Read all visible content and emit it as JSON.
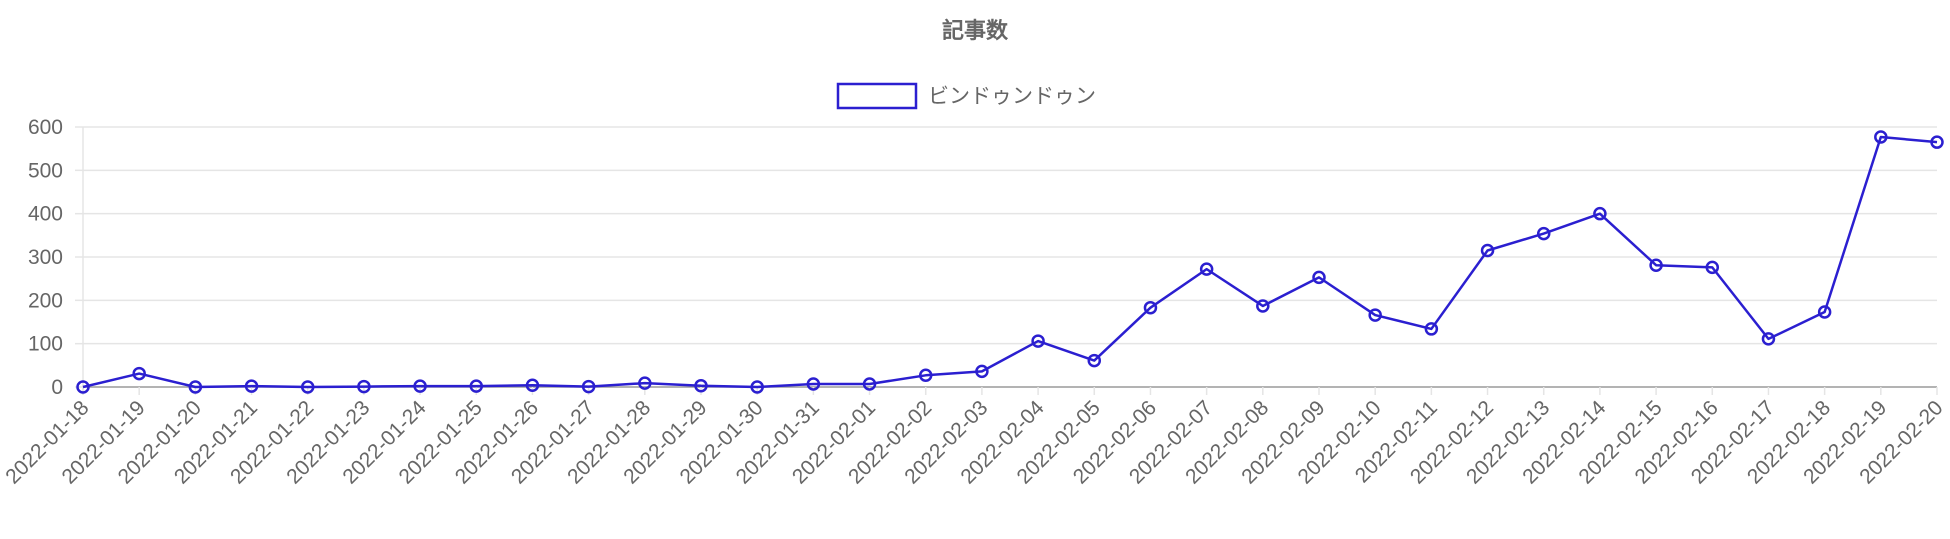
{
  "chart_data": {
    "type": "line",
    "title": "記事数",
    "xlabel": "",
    "ylabel": "",
    "ylim": [
      0,
      600
    ],
    "yticks": [
      "0",
      "100",
      "200",
      "300",
      "400",
      "500",
      "600"
    ],
    "grid": true,
    "legend_position": "top-center",
    "categories": [
      "2022-01-18",
      "2022-01-19",
      "2022-01-20",
      "2022-01-21",
      "2022-01-22",
      "2022-01-23",
      "2022-01-24",
      "2022-01-25",
      "2022-01-26",
      "2022-01-27",
      "2022-01-28",
      "2022-01-29",
      "2022-01-30",
      "2022-01-31",
      "2022-02-01",
      "2022-02-02",
      "2022-02-03",
      "2022-02-04",
      "2022-02-05",
      "2022-02-06",
      "2022-02-07",
      "2022-02-08",
      "2022-02-09",
      "2022-02-10",
      "2022-02-11",
      "2022-02-12",
      "2022-02-13",
      "2022-02-14",
      "2022-02-15",
      "2022-02-16",
      "2022-02-17",
      "2022-02-18",
      "2022-02-19",
      "2022-02-20"
    ],
    "series": [
      {
        "name": "ビンドゥンドゥン",
        "color": "#2b1fd0",
        "values": [
          0,
          31,
          0,
          2,
          0,
          1,
          2,
          2,
          4,
          1,
          9,
          3,
          0,
          7,
          7,
          27,
          36,
          106,
          61,
          183,
          272,
          187,
          253,
          166,
          134,
          315,
          354,
          400,
          281,
          276,
          111,
          173,
          577,
          565
        ]
      }
    ]
  }
}
